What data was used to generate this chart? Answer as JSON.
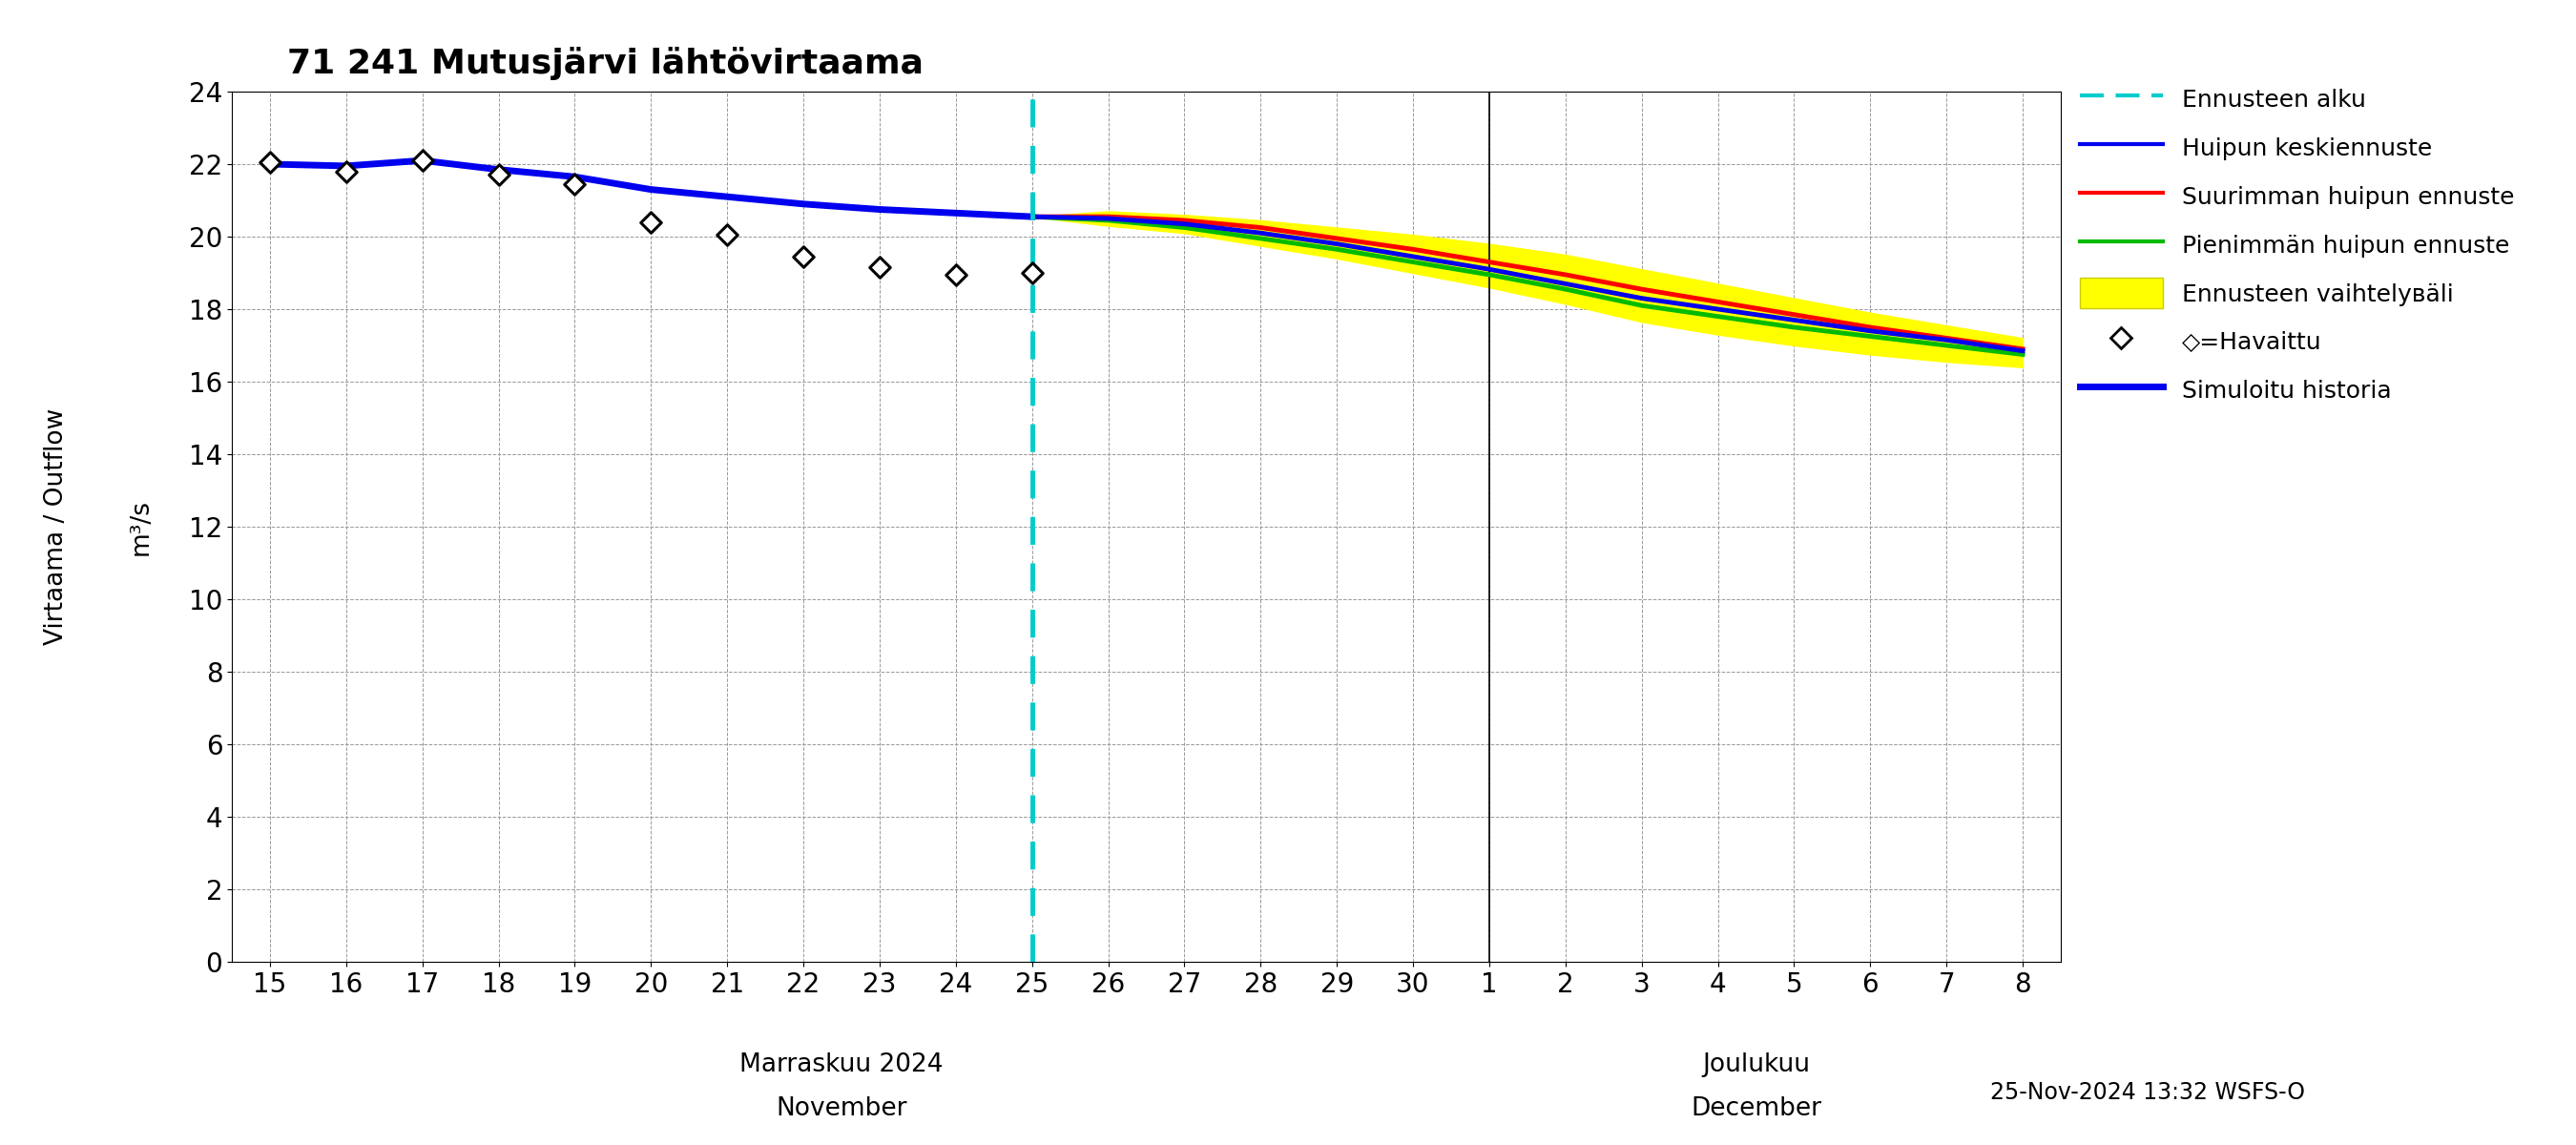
{
  "title": "71 241 Mutusjärvi lähtövirtaama",
  "ylabel1": "Virtaama / Outflow",
  "ylabel2": "m³/s",
  "timestamp": "25-Nov-2024 13:32 WSFS-O",
  "ylim": [
    0,
    24
  ],
  "yticks": [
    0,
    2,
    4,
    6,
    8,
    10,
    12,
    14,
    16,
    18,
    20,
    22,
    24
  ],
  "sim_history_days_nov": [
    15,
    16,
    17,
    18,
    19,
    20,
    21,
    22,
    23,
    24,
    25
  ],
  "sim_history_y": [
    22.0,
    21.95,
    22.1,
    21.85,
    21.65,
    21.3,
    21.1,
    20.9,
    20.75,
    20.65,
    20.55
  ],
  "observed_days_nov": [
    15,
    16,
    17,
    18,
    19,
    20,
    21,
    22,
    23,
    24,
    25
  ],
  "observed_y": [
    22.05,
    21.8,
    22.1,
    21.7,
    21.45,
    20.4,
    20.05,
    19.45,
    19.15,
    18.95,
    19.0
  ],
  "forecast_x_offsets": [
    0,
    1,
    2,
    3,
    4,
    5,
    6,
    7,
    8,
    9,
    10,
    11,
    12,
    13
  ],
  "mean_forecast_y": [
    20.55,
    20.5,
    20.35,
    20.1,
    19.8,
    19.45,
    19.1,
    18.7,
    18.3,
    18.0,
    17.7,
    17.4,
    17.15,
    16.85
  ],
  "max_forecast_y": [
    20.55,
    20.55,
    20.45,
    20.25,
    19.95,
    19.65,
    19.3,
    18.95,
    18.55,
    18.2,
    17.85,
    17.5,
    17.2,
    16.9
  ],
  "min_forecast_y": [
    20.55,
    20.45,
    20.25,
    19.95,
    19.65,
    19.3,
    18.95,
    18.55,
    18.1,
    17.8,
    17.5,
    17.25,
    17.0,
    16.75
  ],
  "band_upper_y": [
    20.55,
    20.7,
    20.6,
    20.45,
    20.25,
    20.05,
    19.8,
    19.5,
    19.1,
    18.7,
    18.3,
    17.9,
    17.55,
    17.2
  ],
  "band_lower_y": [
    20.55,
    20.3,
    20.1,
    19.75,
    19.4,
    19.0,
    18.6,
    18.15,
    17.65,
    17.3,
    17.0,
    16.75,
    16.55,
    16.4
  ],
  "color_simulated": "#0000ee",
  "color_mean_forecast": "#0000ee",
  "color_max_forecast": "#ff0000",
  "color_min_forecast": "#00bb00",
  "color_band": "#ffff00",
  "color_forecast_line": "#00cccc",
  "nov_label1": "Marraskuu 2024",
  "nov_label2": "November",
  "dec_label1": "Joulukuu",
  "dec_label2": "December"
}
